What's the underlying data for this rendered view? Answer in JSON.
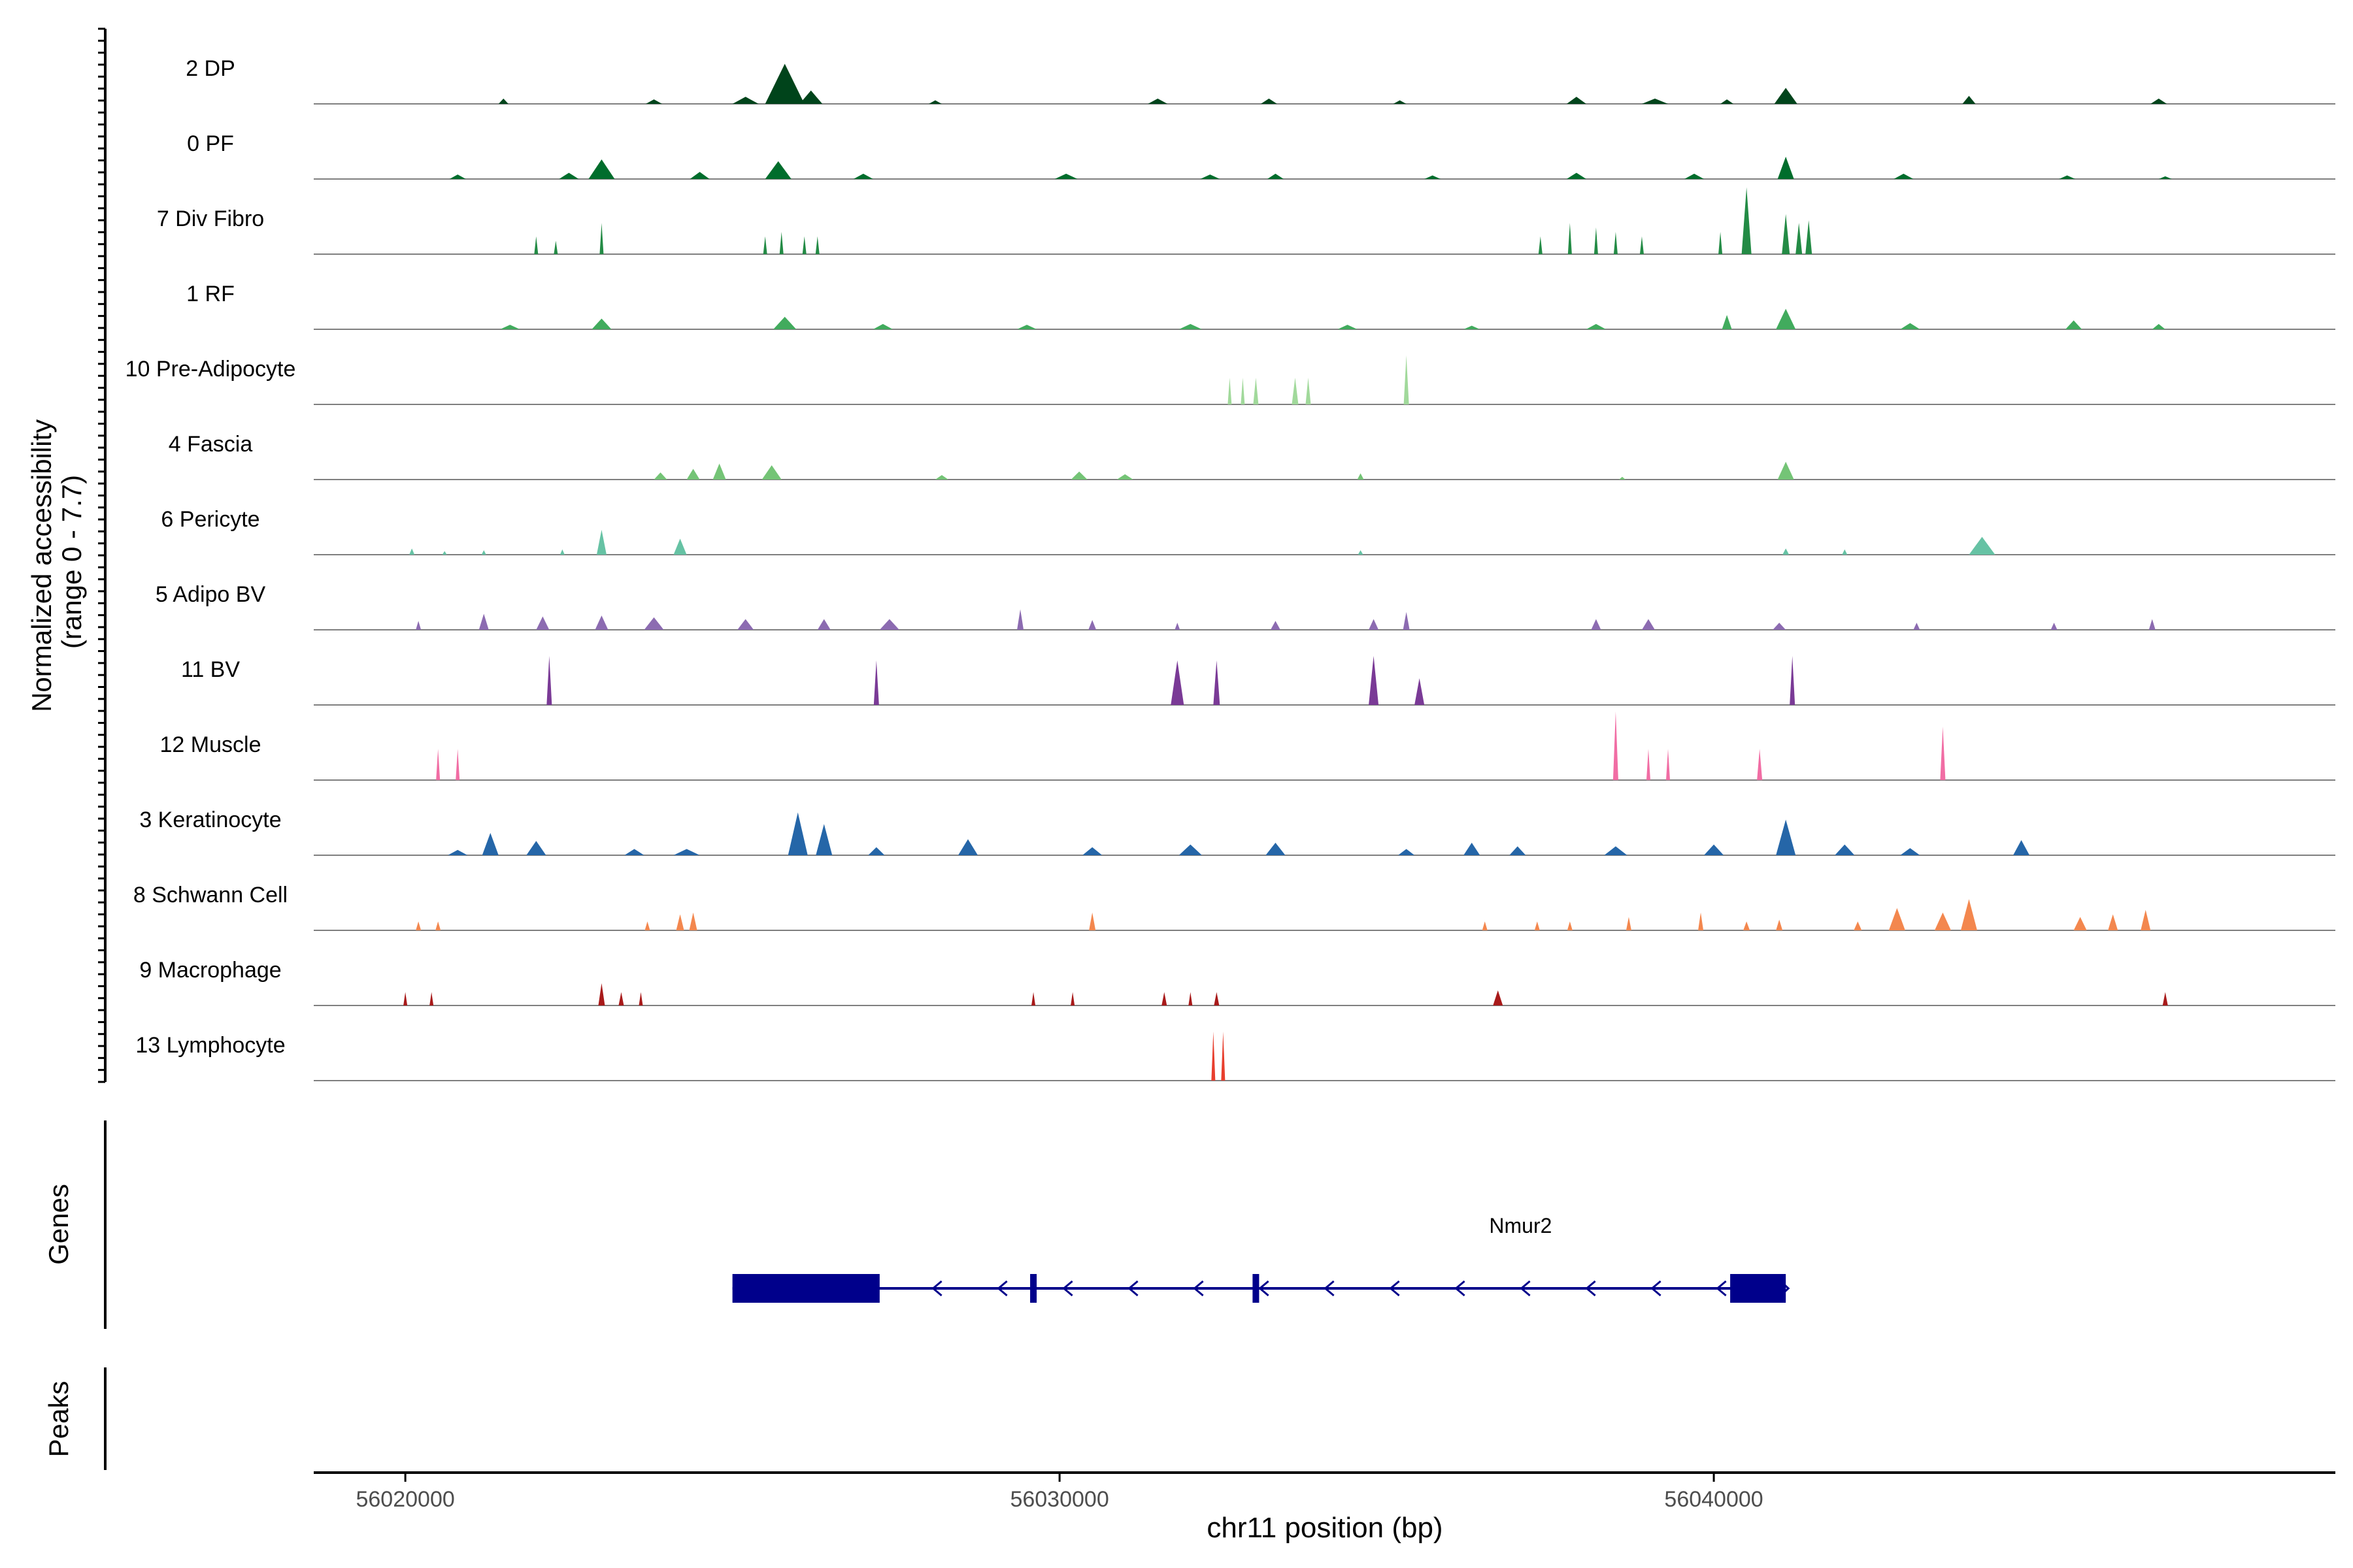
{
  "chart_data": {
    "type": "area",
    "title": "",
    "xlabel": "chr11 position (bp)",
    "ylabel": "Normalized accessibility",
    "ylabel_range": "(range 0 - 7.7)",
    "xlim": [
      56018600,
      56049500
    ],
    "ylim": [
      0,
      7.7
    ],
    "xticks": [
      56020000,
      56030000,
      56040000
    ],
    "xtick_labels": [
      "56020000",
      "56030000",
      "56040000"
    ],
    "tracks": [
      {
        "name": "2 DP",
        "color": "#00441b",
        "peaks": [
          [
            56021500,
            150,
            0.6
          ],
          [
            56023800,
            250,
            0.5
          ],
          [
            56025200,
            400,
            0.8
          ],
          [
            56025800,
            600,
            4.5
          ],
          [
            56026200,
            350,
            1.5
          ],
          [
            56028100,
            200,
            0.4
          ],
          [
            56031500,
            300,
            0.6
          ],
          [
            56033200,
            250,
            0.6
          ],
          [
            56035200,
            200,
            0.4
          ],
          [
            56037900,
            300,
            0.8
          ],
          [
            56039100,
            400,
            0.6
          ],
          [
            56040200,
            200,
            0.5
          ],
          [
            56041100,
            350,
            1.8
          ],
          [
            56043900,
            200,
            0.9
          ],
          [
            56046800,
            250,
            0.6
          ]
        ]
      },
      {
        "name": "0 PF",
        "color": "#006d2c",
        "peaks": [
          [
            56020800,
            250,
            0.5
          ],
          [
            56022500,
            300,
            0.7
          ],
          [
            56023000,
            400,
            2.2
          ],
          [
            56024500,
            300,
            0.8
          ],
          [
            56025700,
            400,
            2.0
          ],
          [
            56027000,
            300,
            0.6
          ],
          [
            56030100,
            350,
            0.6
          ],
          [
            56032300,
            300,
            0.5
          ],
          [
            56033300,
            250,
            0.6
          ],
          [
            56035700,
            250,
            0.4
          ],
          [
            56037900,
            300,
            0.7
          ],
          [
            56039700,
            300,
            0.6
          ],
          [
            56041100,
            250,
            2.5
          ],
          [
            56042900,
            300,
            0.6
          ],
          [
            56045400,
            250,
            0.4
          ],
          [
            56046900,
            200,
            0.3
          ]
        ]
      },
      {
        "name": "7 Div Fibro",
        "color": "#238b45",
        "peaks": [
          [
            56022000,
            60,
            2.0
          ],
          [
            56022300,
            60,
            1.5
          ],
          [
            56023000,
            60,
            3.5
          ],
          [
            56025500,
            60,
            2.0
          ],
          [
            56025750,
            60,
            2.5
          ],
          [
            56026100,
            60,
            2.0
          ],
          [
            56026300,
            60,
            2.0
          ],
          [
            56037350,
            60,
            2.0
          ],
          [
            56037800,
            60,
            3.5
          ],
          [
            56038200,
            60,
            3.0
          ],
          [
            56038500,
            60,
            2.5
          ],
          [
            56038900,
            60,
            2.0
          ],
          [
            56040100,
            60,
            2.5
          ],
          [
            56040500,
            150,
            7.5
          ],
          [
            56041100,
            120,
            4.5
          ],
          [
            56041300,
            100,
            3.5
          ],
          [
            56041450,
            100,
            3.8
          ]
        ]
      },
      {
        "name": "1 RF",
        "color": "#41ab5d",
        "peaks": [
          [
            56021600,
            300,
            0.5
          ],
          [
            56023000,
            300,
            1.2
          ],
          [
            56025800,
            350,
            1.4
          ],
          [
            56027300,
            300,
            0.6
          ],
          [
            56029500,
            300,
            0.5
          ],
          [
            56032000,
            350,
            0.6
          ],
          [
            56034400,
            300,
            0.5
          ],
          [
            56036300,
            250,
            0.4
          ],
          [
            56038200,
            300,
            0.6
          ],
          [
            56040200,
            150,
            1.6
          ],
          [
            56041100,
            300,
            2.3
          ],
          [
            56043000,
            300,
            0.7
          ],
          [
            56045500,
            250,
            1.0
          ],
          [
            56046800,
            200,
            0.6
          ]
        ]
      },
      {
        "name": "10 Pre-Adipocyte",
        "color": "#a1d99b",
        "peaks": [
          [
            56032600,
            60,
            3.0
          ],
          [
            56032800,
            60,
            3.0
          ],
          [
            56033000,
            80,
            3.0
          ],
          [
            56033600,
            100,
            3.0
          ],
          [
            56033800,
            80,
            3.0
          ],
          [
            56035300,
            80,
            5.5
          ]
        ]
      },
      {
        "name": "4 Fascia",
        "color": "#74c476",
        "peaks": [
          [
            56023900,
            200,
            0.8
          ],
          [
            56024400,
            200,
            1.2
          ],
          [
            56024800,
            200,
            1.8
          ],
          [
            56025600,
            300,
            1.6
          ],
          [
            56028200,
            200,
            0.5
          ],
          [
            56030300,
            250,
            0.9
          ],
          [
            56031000,
            250,
            0.6
          ],
          [
            56034600,
            100,
            0.7
          ],
          [
            56038600,
            100,
            0.3
          ],
          [
            56041100,
            250,
            2.0
          ]
        ]
      },
      {
        "name": "6 Pericyte",
        "color": "#66c2a4",
        "peaks": [
          [
            56020100,
            80,
            0.7
          ],
          [
            56020600,
            70,
            0.4
          ],
          [
            56021200,
            70,
            0.5
          ],
          [
            56022400,
            70,
            0.6
          ],
          [
            56023000,
            150,
            2.8
          ],
          [
            56024200,
            200,
            1.8
          ],
          [
            56034600,
            80,
            0.5
          ],
          [
            56041100,
            100,
            0.7
          ],
          [
            56042000,
            80,
            0.6
          ],
          [
            56044100,
            400,
            2.0
          ]
        ]
      },
      {
        "name": "5 Adipo BV",
        "color": "#8c6bb1",
        "peaks": [
          [
            56020200,
            80,
            1.0
          ],
          [
            56021200,
            150,
            1.8
          ],
          [
            56022100,
            200,
            1.5
          ],
          [
            56023000,
            200,
            1.6
          ],
          [
            56023800,
            300,
            1.4
          ],
          [
            56025200,
            250,
            1.2
          ],
          [
            56026400,
            200,
            1.2
          ],
          [
            56027400,
            300,
            1.2
          ],
          [
            56029400,
            100,
            2.3
          ],
          [
            56030500,
            120,
            1.1
          ],
          [
            56031800,
            80,
            0.8
          ],
          [
            56033300,
            150,
            1.0
          ],
          [
            56034800,
            150,
            1.2
          ],
          [
            56035300,
            100,
            2.0
          ],
          [
            56038200,
            150,
            1.2
          ],
          [
            56039000,
            200,
            1.2
          ],
          [
            56041000,
            200,
            0.8
          ],
          [
            56043100,
            100,
            0.8
          ],
          [
            56045200,
            100,
            0.8
          ],
          [
            56046700,
            100,
            1.2
          ]
        ]
      },
      {
        "name": "11 BV",
        "color": "#7a3a96",
        "peaks": [
          [
            56022200,
            80,
            5.5
          ],
          [
            56027200,
            80,
            5.0
          ],
          [
            56031800,
            200,
            5.0
          ],
          [
            56032400,
            100,
            5.0
          ],
          [
            56034800,
            150,
            5.5
          ],
          [
            56035500,
            150,
            3.0
          ],
          [
            56041200,
            80,
            5.5
          ]
        ]
      },
      {
        "name": "12 Muscle",
        "color": "#f16da4",
        "peaks": [
          [
            56020500,
            60,
            3.5
          ],
          [
            56020800,
            60,
            3.5
          ],
          [
            56038500,
            80,
            7.7
          ],
          [
            56039000,
            60,
            3.5
          ],
          [
            56039300,
            60,
            3.5
          ],
          [
            56040700,
            80,
            3.5
          ],
          [
            56043500,
            80,
            6.0
          ]
        ]
      },
      {
        "name": "3 Keratinocyte",
        "color": "#2566a8",
        "peaks": [
          [
            56020800,
            300,
            0.6
          ],
          [
            56021300,
            250,
            2.5
          ],
          [
            56022000,
            300,
            1.6
          ],
          [
            56023500,
            300,
            0.7
          ],
          [
            56024300,
            400,
            0.7
          ],
          [
            56026000,
            300,
            4.8
          ],
          [
            56026400,
            250,
            3.5
          ],
          [
            56027200,
            250,
            0.9
          ],
          [
            56028600,
            300,
            1.8
          ],
          [
            56030500,
            300,
            0.9
          ],
          [
            56032000,
            350,
            1.2
          ],
          [
            56033300,
            300,
            1.4
          ],
          [
            56035300,
            250,
            0.7
          ],
          [
            56036300,
            250,
            1.4
          ],
          [
            56037000,
            250,
            1.0
          ],
          [
            56038500,
            350,
            1.0
          ],
          [
            56040000,
            300,
            1.2
          ],
          [
            56041100,
            300,
            4.0
          ],
          [
            56042000,
            300,
            1.2
          ],
          [
            56043000,
            300,
            0.8
          ],
          [
            56044700,
            250,
            1.7
          ]
        ]
      },
      {
        "name": "8 Schwann Cell",
        "color": "#f3874e",
        "peaks": [
          [
            56020200,
            80,
            1.0
          ],
          [
            56020500,
            80,
            1.0
          ],
          [
            56023700,
            80,
            1.0
          ],
          [
            56024200,
            120,
            1.8
          ],
          [
            56024400,
            120,
            2.0
          ],
          [
            56030500,
            100,
            2.0
          ],
          [
            56036500,
            80,
            1.0
          ],
          [
            56037300,
            80,
            1.0
          ],
          [
            56037800,
            80,
            1.0
          ],
          [
            56038700,
            80,
            1.5
          ],
          [
            56039800,
            80,
            2.0
          ],
          [
            56040500,
            100,
            1.0
          ],
          [
            56041000,
            100,
            1.2
          ],
          [
            56042200,
            120,
            1.0
          ],
          [
            56042800,
            250,
            2.5
          ],
          [
            56043500,
            250,
            2.0
          ],
          [
            56043900,
            250,
            3.5
          ],
          [
            56045600,
            200,
            1.5
          ],
          [
            56046100,
            150,
            1.8
          ],
          [
            56046600,
            150,
            2.3
          ]
        ]
      },
      {
        "name": "9 Macrophage",
        "color": "#a81a1a",
        "peaks": [
          [
            56020000,
            60,
            1.5
          ],
          [
            56020400,
            60,
            1.5
          ],
          [
            56023000,
            100,
            2.5
          ],
          [
            56023300,
            80,
            1.5
          ],
          [
            56023600,
            60,
            1.5
          ],
          [
            56029600,
            60,
            1.5
          ],
          [
            56030200,
            60,
            1.5
          ],
          [
            56031600,
            80,
            1.5
          ],
          [
            56032000,
            60,
            1.5
          ],
          [
            56032400,
            80,
            1.5
          ],
          [
            56036700,
            150,
            1.7
          ],
          [
            56046900,
            80,
            1.5
          ]
        ]
      },
      {
        "name": "13 Lymphocyte",
        "color": "#e83f2e",
        "peaks": [
          [
            56032350,
            60,
            5.5
          ],
          [
            56032500,
            60,
            5.5
          ]
        ]
      }
    ],
    "gene": {
      "name": "Nmur2",
      "strand": "-",
      "color": "#00008b",
      "start": 56025000,
      "end": 56041100,
      "exons": [
        [
          56025000,
          56027250
        ],
        [
          56029550,
          56029650
        ],
        [
          56032950,
          56033050
        ],
        [
          56040250,
          56041100
        ]
      ]
    },
    "gene_track_label": "Genes",
    "peak_track_label": "Peaks"
  }
}
